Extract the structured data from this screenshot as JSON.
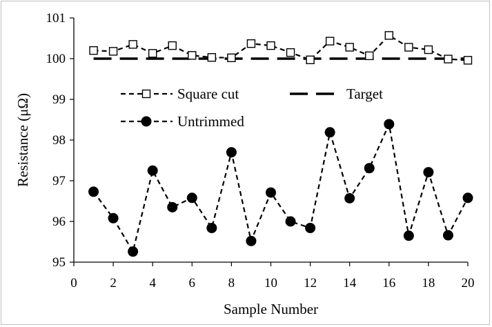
{
  "chart_data": {
    "type": "line",
    "xlabel": "Sample Number",
    "ylabel": "Resistance (μΩ)",
    "xlim": [
      0,
      20
    ],
    "ylim": [
      95,
      101
    ],
    "x_ticks": [
      0,
      2,
      4,
      6,
      8,
      10,
      12,
      14,
      16,
      18,
      20
    ],
    "y_ticks": [
      95,
      96,
      97,
      98,
      99,
      100,
      101
    ],
    "grid": false,
    "legend_position": "upper-left inside plot",
    "x": [
      1,
      2,
      3,
      4,
      5,
      6,
      7,
      8,
      9,
      10,
      11,
      12,
      13,
      14,
      15,
      16,
      17,
      18,
      19,
      20
    ],
    "series": [
      {
        "name": "Square cut",
        "marker": "open-square",
        "line": "short-dash",
        "color": "#000000",
        "values": [
          100.2,
          100.18,
          100.35,
          100.13,
          100.32,
          100.08,
          100.03,
          100.02,
          100.37,
          100.32,
          100.15,
          99.97,
          100.43,
          100.28,
          100.07,
          100.57,
          100.28,
          100.22,
          99.99,
          99.96
        ]
      },
      {
        "name": "Target",
        "marker": "none",
        "line": "long-dash",
        "color": "#000000",
        "values": [
          100,
          100,
          100,
          100,
          100,
          100,
          100,
          100,
          100,
          100,
          100,
          100,
          100,
          100,
          100,
          100,
          100,
          100,
          100,
          100
        ]
      },
      {
        "name": "Untrimmed",
        "marker": "filled-circle",
        "line": "short-dash",
        "color": "#000000",
        "values": [
          96.73,
          96.08,
          95.26,
          97.25,
          96.35,
          96.58,
          95.84,
          97.7,
          95.52,
          96.71,
          96.0,
          95.84,
          98.19,
          96.57,
          97.31,
          98.39,
          95.65,
          97.21,
          95.66,
          96.58
        ]
      }
    ]
  }
}
